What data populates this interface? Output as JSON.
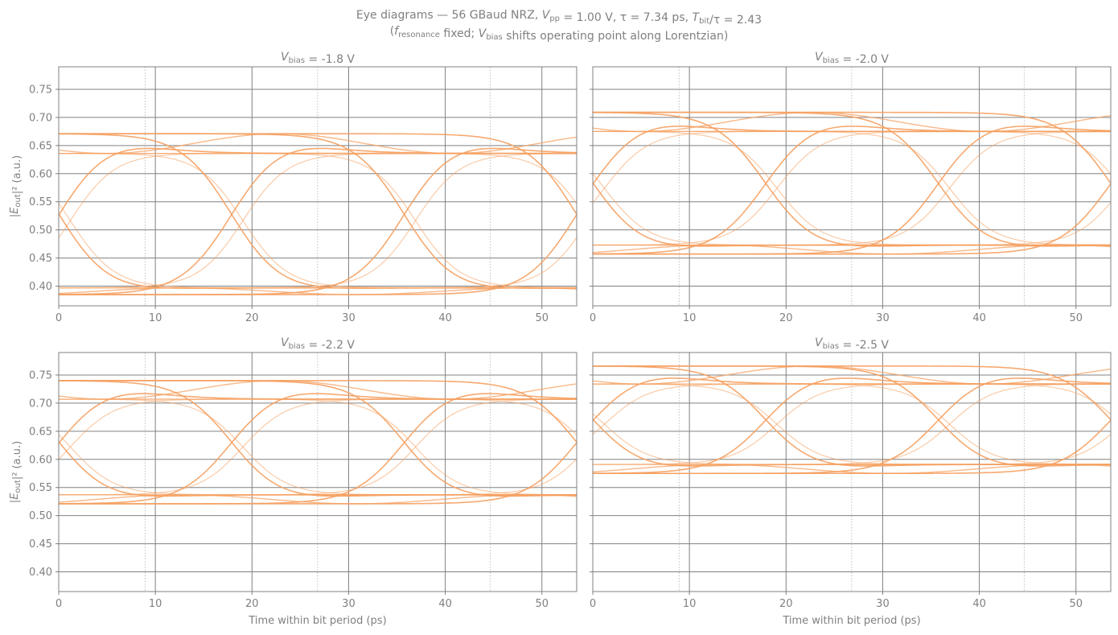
{
  "figure": {
    "title_line1": "Eye diagrams — 56 GBaud NRZ,  V_pp = 1.00 V,  τ = 7.34 ps,  T_bit/τ = 2.43",
    "title_line2": "(f_resonance fixed; V_bias shifts operating point along Lorentzian)"
  },
  "chart_data": [
    {
      "type": "line",
      "title": "V_bias = -1.8 V",
      "xlabel": "",
      "ylabel": "|E_out|² (a.u.)",
      "xlim": [
        0,
        53.6
      ],
      "ylim": [
        0.365,
        0.79
      ],
      "xticks": [
        0,
        10,
        20,
        30,
        40,
        50
      ],
      "yticks": [
        0.4,
        0.45,
        0.5,
        0.55,
        0.6,
        0.65,
        0.7,
        0.75
      ],
      "bit_boundaries_ps": [
        8.93,
        26.79,
        44.64
      ],
      "low_level": 0.385,
      "high_level": 0.671,
      "low_steady": 0.397,
      "high_steady": 0.636,
      "trace_color": "#f5a060",
      "grid": true
    },
    {
      "type": "line",
      "title": "V_bias = -2.0 V",
      "xlabel": "",
      "ylabel": "",
      "xlim": [
        0,
        53.6
      ],
      "ylim": [
        0.365,
        0.79
      ],
      "xticks": [
        0,
        10,
        20,
        30,
        40,
        50
      ],
      "yticks": [
        0.4,
        0.45,
        0.5,
        0.55,
        0.6,
        0.65,
        0.7,
        0.75
      ],
      "bit_boundaries_ps": [
        8.93,
        26.79,
        44.64
      ],
      "low_level": 0.457,
      "high_level": 0.709,
      "low_steady": 0.473,
      "high_steady": 0.675,
      "trace_color": "#f5a060",
      "grid": true
    },
    {
      "type": "line",
      "title": "V_bias = -2.2 V",
      "xlabel": "Time within bit period (ps)",
      "ylabel": "|E_out|² (a.u.)",
      "xlim": [
        0,
        53.6
      ],
      "ylim": [
        0.365,
        0.79
      ],
      "xticks": [
        0,
        10,
        20,
        30,
        40,
        50
      ],
      "yticks": [
        0.4,
        0.45,
        0.5,
        0.55,
        0.6,
        0.65,
        0.7,
        0.75
      ],
      "bit_boundaries_ps": [
        8.93,
        26.79,
        44.64
      ],
      "low_level": 0.521,
      "high_level": 0.74,
      "low_steady": 0.537,
      "high_steady": 0.707,
      "trace_color": "#f5a060",
      "grid": true
    },
    {
      "type": "line",
      "title": "V_bias = -2.5 V",
      "xlabel": "Time within bit period (ps)",
      "ylabel": "",
      "xlim": [
        0,
        53.6
      ],
      "ylim": [
        0.365,
        0.79
      ],
      "xticks": [
        0,
        10,
        20,
        30,
        40,
        50
      ],
      "yticks": [
        0.4,
        0.45,
        0.5,
        0.55,
        0.6,
        0.65,
        0.7,
        0.75
      ],
      "bit_boundaries_ps": [
        8.93,
        26.79,
        44.64
      ],
      "low_level": 0.575,
      "high_level": 0.766,
      "low_steady": 0.591,
      "high_steady": 0.734,
      "trace_color": "#f5a060",
      "grid": true
    }
  ]
}
